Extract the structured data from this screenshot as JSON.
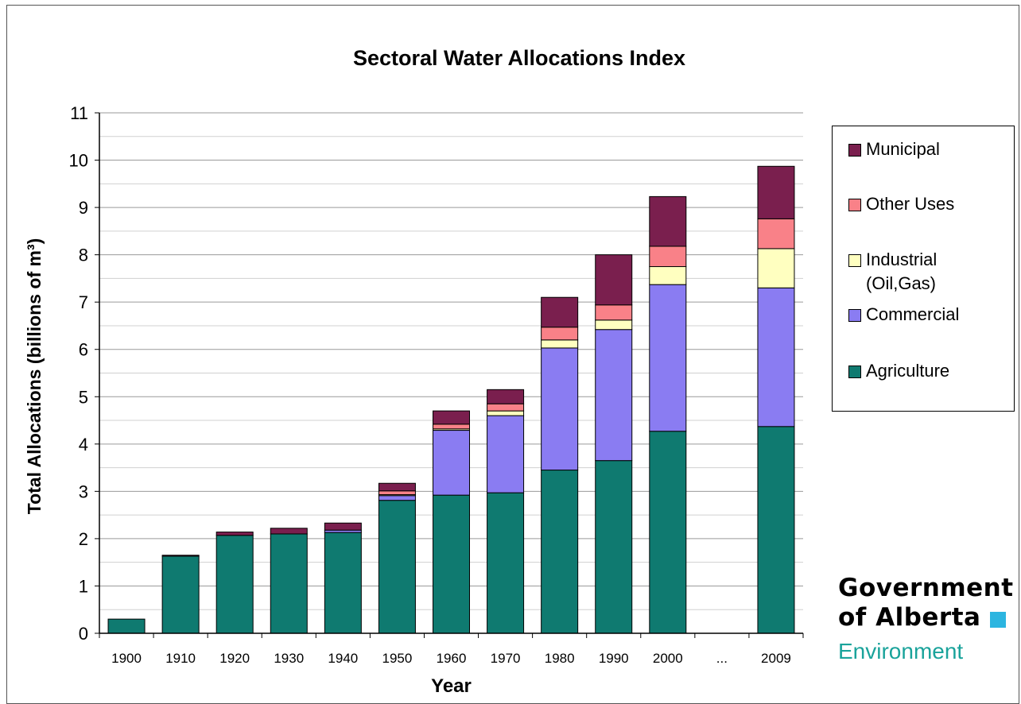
{
  "colors": {
    "agriculture": "#0f7a70",
    "commercial": "#8a7cf2",
    "industrial": "#ffffc0",
    "other_uses": "#f98188",
    "municipal": "#7a1f4e",
    "gridline": "#a0a0a0",
    "brand_square": "#2cb5e0",
    "brand_dept": "#1aa39b"
  },
  "chart_data": {
    "type": "bar",
    "stacked": true,
    "title": "Sectoral Water Allocations Index",
    "xlabel": "Year",
    "ylabel": "Total Allocations (billions of m³)",
    "ylim": [
      0,
      11
    ],
    "yticks": [
      "0",
      "1",
      "2",
      "3",
      "4",
      "5",
      "6",
      "7",
      "8",
      "9",
      "10",
      "11"
    ],
    "grid": true,
    "legend_position": "right",
    "categories": [
      "1900",
      "1910",
      "1920",
      "1930",
      "1940",
      "1950",
      "1960",
      "1970",
      "1980",
      "1990",
      "2000",
      "...",
      "2009"
    ],
    "series": [
      {
        "name": "Agriculture",
        "color_key": "agriculture",
        "values": [
          0.3,
          1.63,
          2.07,
          2.1,
          2.13,
          2.81,
          2.92,
          2.97,
          3.45,
          3.65,
          4.27,
          null,
          4.37
        ]
      },
      {
        "name": "Commercial",
        "color_key": "commercial",
        "values": [
          0,
          0,
          0,
          0,
          0.05,
          0.1,
          1.37,
          1.63,
          2.58,
          2.77,
          3.1,
          null,
          2.93
        ]
      },
      {
        "name": "Industrial\n(Oil,Gas)",
        "color_key": "industrial",
        "values": [
          0,
          0,
          0,
          0,
          0,
          0.02,
          0.03,
          0.1,
          0.17,
          0.2,
          0.38,
          null,
          0.83
        ]
      },
      {
        "name": "Other Uses",
        "color_key": "other_uses",
        "values": [
          0,
          0,
          0,
          0,
          0,
          0.08,
          0.1,
          0.15,
          0.27,
          0.32,
          0.43,
          null,
          0.63
        ]
      },
      {
        "name": "Municipal",
        "color_key": "municipal",
        "values": [
          0,
          0.02,
          0.07,
          0.12,
          0.15,
          0.16,
          0.28,
          0.3,
          0.63,
          1.06,
          1.05,
          null,
          1.11
        ]
      }
    ]
  },
  "legend": {
    "items": [
      {
        "label": "Municipal",
        "color_key": "municipal"
      },
      {
        "label": "Other Uses",
        "color_key": "other_uses"
      },
      {
        "label": "Industrial\n(Oil,Gas)",
        "color_key": "industrial"
      },
      {
        "label": "Commercial",
        "color_key": "commercial"
      },
      {
        "label": "Agriculture",
        "color_key": "agriculture"
      }
    ]
  },
  "logo": {
    "line1": "Government",
    "line2": "of Alberta",
    "department": "Environment"
  }
}
